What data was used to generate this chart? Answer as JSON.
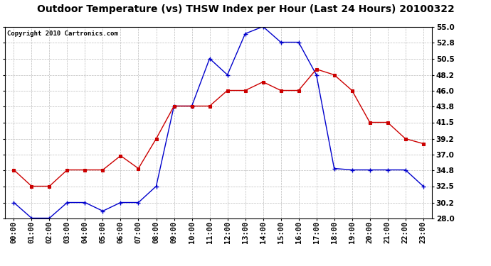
{
  "title": "Outdoor Temperature (vs) THSW Index per Hour (Last 24 Hours) 20100322",
  "copyright": "Copyright 2010 Cartronics.com",
  "hours": [
    "00:00",
    "01:00",
    "02:00",
    "03:00",
    "04:00",
    "05:00",
    "06:00",
    "07:00",
    "08:00",
    "09:00",
    "10:00",
    "11:00",
    "12:00",
    "13:00",
    "14:00",
    "15:00",
    "16:00",
    "17:00",
    "18:00",
    "19:00",
    "20:00",
    "21:00",
    "22:00",
    "23:00"
  ],
  "temp_blue": [
    30.2,
    28.0,
    28.0,
    30.2,
    30.2,
    29.0,
    30.2,
    30.2,
    32.5,
    43.8,
    43.8,
    50.5,
    48.2,
    54.0,
    55.0,
    52.8,
    52.8,
    48.2,
    35.0,
    34.8,
    34.8,
    34.8,
    34.8,
    32.5
  ],
  "temp_red": [
    34.8,
    32.5,
    32.5,
    34.8,
    34.8,
    34.8,
    36.8,
    35.0,
    39.2,
    43.8,
    43.8,
    43.8,
    46.0,
    46.0,
    47.2,
    46.0,
    46.0,
    49.0,
    48.2,
    46.0,
    41.5,
    41.5,
    39.2,
    38.5
  ],
  "blue_color": "#0000cc",
  "red_color": "#cc0000",
  "bg_color": "#ffffff",
  "grid_color": "#bbbbbb",
  "ylim": [
    28.0,
    55.0
  ],
  "yticks": [
    28.0,
    30.2,
    32.5,
    34.8,
    37.0,
    39.2,
    41.5,
    43.8,
    46.0,
    48.2,
    50.5,
    52.8,
    55.0
  ],
  "title_fontsize": 10,
  "copyright_fontsize": 6.5,
  "axis_fontsize": 7.5
}
